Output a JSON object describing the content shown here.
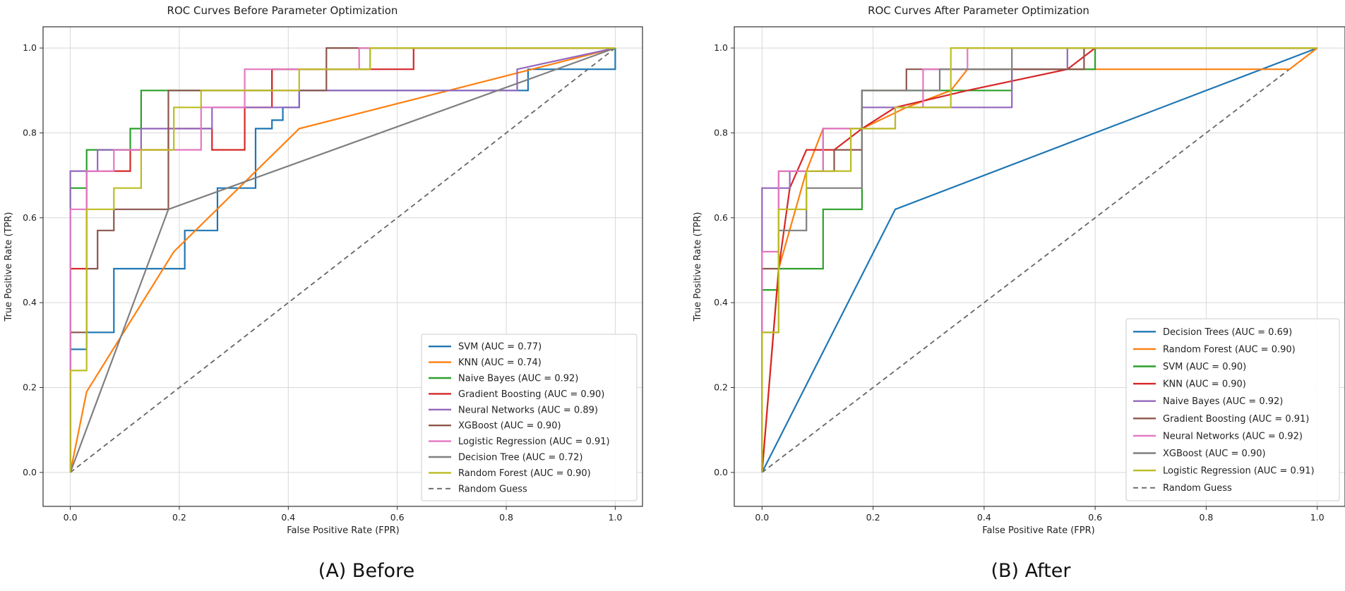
{
  "chart_data": [
    {
      "type": "line",
      "panel_caption": "(A) Before",
      "title": "ROC Curves Before Parameter Optimization",
      "xlabel": "False Positive Rate (FPR)",
      "ylabel": "True Positive Rate (TPR)",
      "xlim": [
        -0.05,
        1.05
      ],
      "ylim": [
        -0.08,
        1.05
      ],
      "xticks": [
        0.0,
        0.2,
        0.4,
        0.6,
        0.8,
        1.0
      ],
      "yticks": [
        0.0,
        0.2,
        0.4,
        0.6,
        0.8,
        1.0
      ],
      "tick_labels": [
        "0.0",
        "0.2",
        "0.4",
        "0.6",
        "0.8",
        "1.0"
      ],
      "grid": true,
      "legend_position": "lower-right",
      "series": [
        {
          "name": "SVM (AUC = 0.77)",
          "color": "#1f77b4",
          "x": [
            0,
            0,
            0.03,
            0.03,
            0.08,
            0.08,
            0.21,
            0.21,
            0.27,
            0.27,
            0.34,
            0.34,
            0.37,
            0.37,
            0.39,
            0.39,
            0.42,
            0.42,
            0.84,
            0.84,
            1,
            1
          ],
          "y": [
            0,
            0.29,
            0.29,
            0.33,
            0.33,
            0.48,
            0.48,
            0.57,
            0.57,
            0.67,
            0.67,
            0.81,
            0.81,
            0.83,
            0.83,
            0.86,
            0.86,
            0.9,
            0.9,
            0.95,
            0.95,
            1
          ]
        },
        {
          "name": "KNN (AUC = 0.74)",
          "color": "#ff7f0e",
          "x": [
            0,
            0.03,
            0.19,
            0.42,
            1
          ],
          "y": [
            0,
            0.19,
            0.52,
            0.81,
            1
          ]
        },
        {
          "name": "Naive Bayes (AUC = 0.92)",
          "color": "#2ca02c",
          "x": [
            0,
            0,
            0.03,
            0.03,
            0.11,
            0.11,
            0.13,
            0.13,
            0.37,
            0.37,
            0.55,
            0.55,
            1
          ],
          "y": [
            0,
            0.67,
            0.67,
            0.76,
            0.76,
            0.81,
            0.81,
            0.9,
            0.9,
            0.95,
            0.95,
            1,
            1
          ]
        },
        {
          "name": "Gradient Boosting (AUC = 0.90)",
          "color": "#d62728",
          "x": [
            0,
            0,
            0.03,
            0.03,
            0.11,
            0.11,
            0.18,
            0.18,
            0.26,
            0.26,
            0.32,
            0.32,
            0.37,
            0.37,
            0.63,
            0.63,
            1
          ],
          "y": [
            0,
            0.48,
            0.48,
            0.71,
            0.71,
            0.76,
            0.76,
            0.81,
            0.81,
            0.76,
            0.76,
            0.86,
            0.86,
            0.95,
            0.95,
            1,
            1
          ]
        },
        {
          "name": "Neural Networks (AUC = 0.89)",
          "color": "#9467bd",
          "x": [
            0,
            0,
            0.05,
            0.05,
            0.13,
            0.13,
            0.26,
            0.26,
            0.42,
            0.42,
            0.82,
            0.82,
            1
          ],
          "y": [
            0,
            0.71,
            0.71,
            0.76,
            0.76,
            0.81,
            0.81,
            0.86,
            0.86,
            0.9,
            0.9,
            0.95,
            1
          ]
        },
        {
          "name": "XGBoost (AUC = 0.90)",
          "color": "#8c564b",
          "x": [
            0,
            0,
            0.03,
            0.03,
            0.05,
            0.05,
            0.08,
            0.08,
            0.18,
            0.18,
            0.24,
            0.24,
            0.47,
            0.47,
            0.53,
            0.53,
            1
          ],
          "y": [
            0,
            0.33,
            0.33,
            0.48,
            0.48,
            0.57,
            0.57,
            0.62,
            0.62,
            0.9,
            0.9,
            0.9,
            0.9,
            1,
            1,
            1,
            1
          ]
        },
        {
          "name": "Logistic Regression (AUC = 0.91)",
          "color": "#e377c2",
          "x": [
            0,
            0,
            0.03,
            0.03,
            0.08,
            0.08,
            0.24,
            0.24,
            0.32,
            0.32,
            0.53,
            0.53,
            1
          ],
          "y": [
            0,
            0.62,
            0.62,
            0.71,
            0.71,
            0.76,
            0.76,
            0.86,
            0.86,
            0.95,
            0.95,
            1,
            1
          ]
        },
        {
          "name": "Decision Tree (AUC = 0.72)",
          "color": "#7f7f7f",
          "x": [
            0,
            0.18,
            1
          ],
          "y": [
            0,
            0.62,
            1
          ]
        },
        {
          "name": "Random Forest (AUC = 0.90)",
          "color": "#bcbd22",
          "x": [
            0,
            0,
            0.03,
            0.03,
            0.08,
            0.08,
            0.13,
            0.13,
            0.19,
            0.19,
            0.24,
            0.24,
            0.42,
            0.42,
            0.55,
            0.55,
            1
          ],
          "y": [
            0,
            0.24,
            0.24,
            0.62,
            0.62,
            0.67,
            0.67,
            0.76,
            0.76,
            0.86,
            0.86,
            0.9,
            0.9,
            0.95,
            0.95,
            1,
            1
          ]
        },
        {
          "name": "Random Guess",
          "color": "#666666",
          "dashed": true,
          "x": [
            0,
            1
          ],
          "y": [
            0,
            1
          ]
        }
      ]
    },
    {
      "type": "line",
      "panel_caption": "(B) After",
      "title": "ROC Curves After Parameter Optimization",
      "xlabel": "False Positive Rate (FPR)",
      "ylabel": "True Positive Rate (TPR)",
      "xlim": [
        -0.05,
        1.05
      ],
      "ylim": [
        -0.08,
        1.05
      ],
      "xticks": [
        0.0,
        0.2,
        0.4,
        0.6,
        0.8,
        1.0
      ],
      "yticks": [
        0.0,
        0.2,
        0.4,
        0.6,
        0.8,
        1.0
      ],
      "tick_labels": [
        "0.0",
        "0.2",
        "0.4",
        "0.6",
        "0.8",
        "1.0"
      ],
      "grid": true,
      "legend_position": "lower-right",
      "series": [
        {
          "name": "Decision Trees (AUC = 0.69)",
          "color": "#1f77b4",
          "x": [
            0,
            0.24,
            1
          ],
          "y": [
            0,
            0.62,
            1
          ]
        },
        {
          "name": "Random Forest (AUC = 0.90)",
          "color": "#ff7f0e",
          "x": [
            0,
            0.03,
            0.08,
            0.11,
            0.18,
            0.26,
            0.34,
            0.37,
            0.42,
            0.42,
            0.95,
            1
          ],
          "y": [
            0,
            0.48,
            0.71,
            0.81,
            0.81,
            0.86,
            0.9,
            0.95,
            0.95,
            0.95,
            0.95,
            1
          ]
        },
        {
          "name": "SVM (AUC = 0.90)",
          "color": "#2ca02c",
          "x": [
            0,
            0,
            0.03,
            0.03,
            0.11,
            0.11,
            0.18,
            0.18,
            0.45,
            0.45,
            0.6,
            0.6,
            1
          ],
          "y": [
            0,
            0.43,
            0.43,
            0.48,
            0.48,
            0.62,
            0.62,
            0.9,
            0.9,
            0.95,
            0.95,
            1,
            1
          ]
        },
        {
          "name": "KNN (AUC = 0.90)",
          "color": "#d62728",
          "x": [
            0,
            0.03,
            0.05,
            0.08,
            0.13,
            0.18,
            0.24,
            0.37,
            0.55,
            0.6,
            1
          ],
          "y": [
            0,
            0.48,
            0.67,
            0.76,
            0.76,
            0.81,
            0.86,
            0.9,
            0.95,
            1,
            1
          ]
        },
        {
          "name": "Naive Bayes (AUC = 0.92)",
          "color": "#9467bd",
          "x": [
            0,
            0,
            0.05,
            0.05,
            0.11,
            0.11,
            0.18,
            0.18,
            0.45,
            0.45,
            0.55,
            0.55,
            1
          ],
          "y": [
            0,
            0.67,
            0.67,
            0.71,
            0.71,
            0.81,
            0.81,
            0.86,
            0.86,
            0.95,
            0.95,
            1,
            1
          ]
        },
        {
          "name": "Gradient Boosting (AUC = 0.91)",
          "color": "#8c564b",
          "x": [
            0,
            0,
            0.03,
            0.03,
            0.13,
            0.13,
            0.18,
            0.18,
            0.26,
            0.26,
            0.58,
            0.58,
            1
          ],
          "y": [
            0,
            0.48,
            0.48,
            0.71,
            0.71,
            0.76,
            0.76,
            0.9,
            0.9,
            0.95,
            0.95,
            1,
            1
          ]
        },
        {
          "name": "Neural Networks (AUC = 0.92)",
          "color": "#e377c2",
          "x": [
            0,
            0,
            0.03,
            0.03,
            0.11,
            0.11,
            0.24,
            0.24,
            0.29,
            0.29,
            0.37,
            0.37,
            1
          ],
          "y": [
            0,
            0.52,
            0.52,
            0.71,
            0.71,
            0.81,
            0.81,
            0.86,
            0.86,
            0.95,
            0.95,
            1,
            1
          ]
        },
        {
          "name": "XGBoost (AUC = 0.90)",
          "color": "#7f7f7f",
          "x": [
            0,
            0,
            0.03,
            0.03,
            0.08,
            0.08,
            0.18,
            0.18,
            0.32,
            0.32,
            0.45,
            0.45,
            1
          ],
          "y": [
            0,
            0.33,
            0.33,
            0.57,
            0.57,
            0.67,
            0.67,
            0.9,
            0.9,
            0.95,
            0.95,
            1,
            1
          ]
        },
        {
          "name": "Logistic Regression (AUC = 0.91)",
          "color": "#bcbd22",
          "x": [
            0,
            0,
            0.03,
            0.03,
            0.08,
            0.08,
            0.16,
            0.16,
            0.24,
            0.24,
            0.34,
            0.34,
            1
          ],
          "y": [
            0,
            0.33,
            0.33,
            0.62,
            0.62,
            0.71,
            0.71,
            0.81,
            0.81,
            0.86,
            0.86,
            1,
            1
          ]
        },
        {
          "name": "Random Guess",
          "color": "#666666",
          "dashed": true,
          "x": [
            0,
            1
          ],
          "y": [
            0,
            1
          ]
        }
      ]
    }
  ]
}
